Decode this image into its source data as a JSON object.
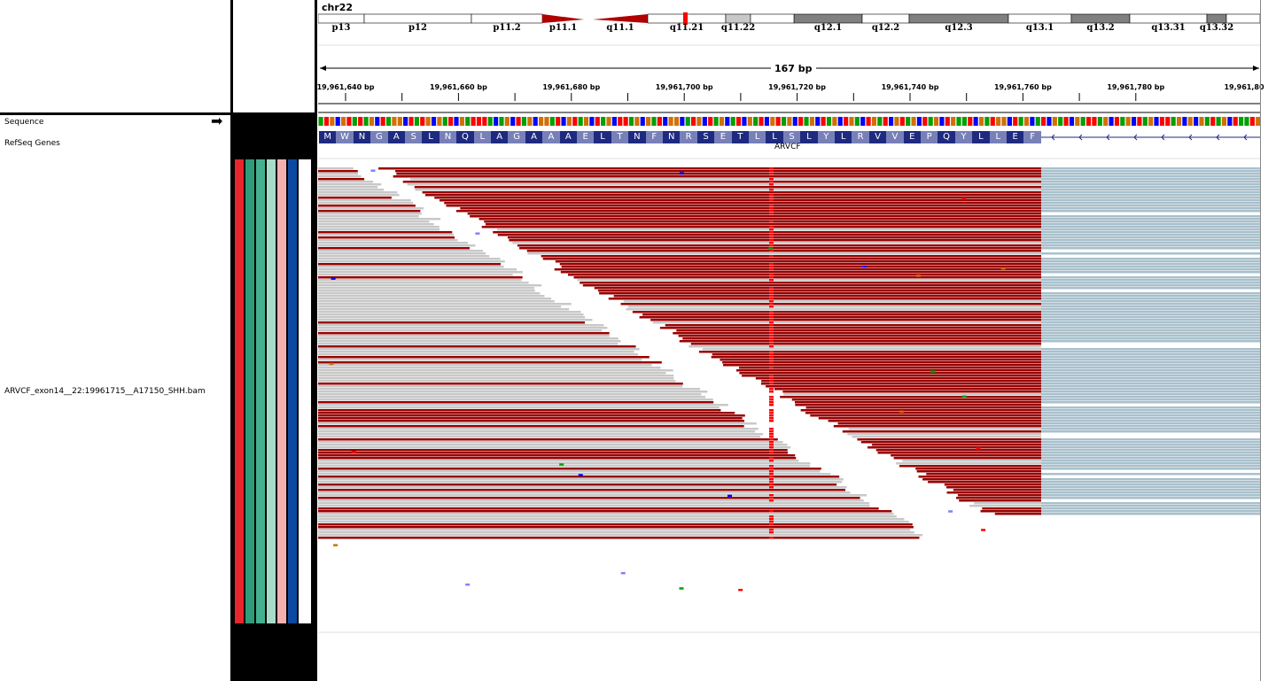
{
  "chromosome": "chr22",
  "cytobands": [
    {
      "name": "p13",
      "start": 0,
      "end": 52,
      "stain": "gneg"
    },
    {
      "name": "p12",
      "start": 52,
      "end": 173,
      "stain": "gneg"
    },
    {
      "name": "p11.2",
      "start": 173,
      "end": 253,
      "stain": "gneg"
    },
    {
      "name": "p11.1",
      "start": 253,
      "end": 300,
      "stain": "acen"
    },
    {
      "name": "q11.1",
      "start": 310,
      "end": 372,
      "stain": "acen"
    },
    {
      "name": "q11.21",
      "start": 372,
      "end": 460,
      "stain": "gneg"
    },
    {
      "name": "q11.22",
      "start": 460,
      "end": 488,
      "stain": "gpos25"
    },
    {
      "name": "q12.1",
      "start": 537,
      "end": 614,
      "stain": "gpos50"
    },
    {
      "name": "q12.2",
      "start": 614,
      "end": 667,
      "stain": "gneg"
    },
    {
      "name": "q12.3",
      "start": 667,
      "end": 779,
      "stain": "gpos50"
    },
    {
      "name": "q13.1",
      "start": 779,
      "end": 850,
      "stain": "gneg"
    },
    {
      "name": "q13.2",
      "start": 850,
      "end": 916,
      "stain": "gpos50"
    },
    {
      "name": "q13.31",
      "start": 916,
      "end": 1003,
      "stain": "gneg"
    },
    {
      "name": "q13.32",
      "start": 1003,
      "end": 1025,
      "stain": "gpos50"
    }
  ],
  "region_span": "167 bp",
  "ruler_ticks": [
    "19,961,640 bp",
    "19,961,660 bp",
    "19,961,680 bp",
    "19,961,700 bp",
    "19,961,720 bp",
    "19,961,740 bp",
    "19,961,760 bp",
    "19,961,780 bp",
    "19,961,80"
  ],
  "tracks": {
    "sequence": "Sequence",
    "refseq": "RefSeq Genes",
    "bam": "ARVCF_exon14__22:19961715__A17150_SHH.bam"
  },
  "amino_acids": [
    "M",
    "W",
    "N",
    "G",
    "A",
    "S",
    "L",
    "N",
    "Q",
    "L",
    "A",
    "G",
    "A",
    "A",
    "A",
    "E",
    "L",
    "T",
    "N",
    "F",
    "N",
    "R",
    "S",
    "E",
    "T",
    "L",
    "L",
    "S",
    "L",
    "Y",
    "L",
    "R",
    "V",
    "V",
    "E",
    "P",
    "Q",
    "Y",
    "L",
    "L",
    "E",
    "F"
  ],
  "gene_name": "ARVCF",
  "colors": {
    "read_gray": "#c8c8c8",
    "read_red": "#990000",
    "mismatch": "#ff0000",
    "soft_clip_blue": "#a8c0cc",
    "aa_dark": "#1e2a80",
    "aa_light": "#7880b8",
    "base_A": "#00a000",
    "base_C": "#0000ff",
    "base_G": "#d17105",
    "base_T": "#ff0000",
    "sample_colors": [
      "#e8262b",
      "#2e9c78",
      "#45b090",
      "#a8dcc8",
      "#f3b0b0",
      "#0a4aa0"
    ]
  },
  "reference_bases": "ATGCGTATAGCTAGGCTATGCGATCGATTTACAGCTAGCGGATCGTAGCTAGCTTAGCGATCGGCATGCTAGCATCGATCGTAGCTAGCTAGCTGACTGATCGTAGCTAGCTGAATCGATGGCTAGCATCGATCGATTAGCTAGCTAGCTTAGCGCGATAGCTA"
}
